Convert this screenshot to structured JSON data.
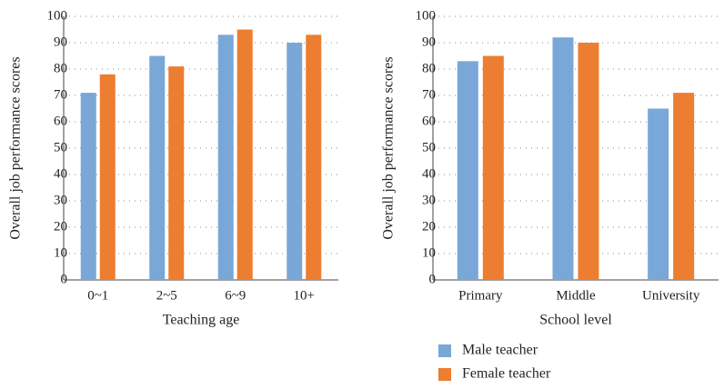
{
  "chart_data": [
    {
      "type": "bar",
      "x_label": "Teaching age",
      "y_label": "Overall job performance scores",
      "categories": [
        "0~1",
        "2~5",
        "6~9",
        "10+"
      ],
      "series": [
        {
          "color": "#79a7d8",
          "values": [
            71,
            85,
            93,
            90
          ]
        },
        {
          "color": "#ed7d31",
          "values": [
            78,
            81,
            95,
            93
          ]
        }
      ],
      "ylim": [
        0,
        100
      ],
      "yticks": [
        0,
        10,
        20,
        30,
        40,
        50,
        60,
        70,
        80,
        90,
        100
      ],
      "grid": true
    },
    {
      "type": "bar",
      "x_label": "School level",
      "y_label": "Overall job performance scores",
      "categories": [
        "Primary",
        "Middle",
        "University"
      ],
      "series": [
        {
          "name": "Male teacher",
          "color": "#79a7d8",
          "values": [
            83,
            92,
            65
          ]
        },
        {
          "name": "Female teacher",
          "color": "#ed7d31",
          "values": [
            85,
            90,
            71
          ]
        }
      ],
      "ylim": [
        0,
        100
      ],
      "yticks": [
        0,
        10,
        20,
        30,
        40,
        50,
        60,
        70,
        80,
        90,
        100
      ],
      "grid": true,
      "legend": "bottom"
    }
  ]
}
